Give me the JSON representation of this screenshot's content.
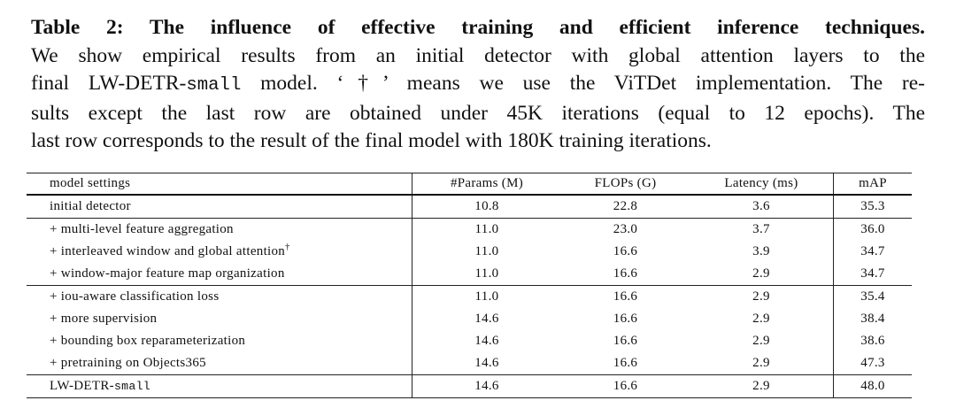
{
  "caption": {
    "title": "Table 2: The influence of effective training and efficient inference techniques.",
    "lines": [
      [
        "We show empirical results from an initial detector with global attention layers to the"
      ],
      [
        "final LW-DETR-",
        "small",
        " model. ‘†’ means we use the ViTDet implementation. The re-"
      ],
      [
        "sults except the last row are obtained under 45K iterations (equal to 12 epochs). The"
      ],
      [
        "last row corresponds to the result of the final model with 180K training iterations."
      ]
    ]
  },
  "table": {
    "header": [
      "model settings",
      "#Params (M)",
      "FLOPs (G)",
      "Latency (ms)",
      "mAP"
    ],
    "groups": [
      [
        {
          "cells": [
            "initial detector",
            "10.8",
            "22.8",
            "3.6",
            "35.3"
          ]
        }
      ],
      [
        {
          "cells": [
            "+ multi-level feature aggregation",
            "11.0",
            "23.0",
            "3.7",
            "36.0"
          ]
        },
        {
          "cells": [
            "+ interleaved window and global attention",
            "11.0",
            "16.6",
            "3.9",
            "34.7"
          ],
          "sup": "†"
        },
        {
          "cells": [
            "+ window-major feature map organization",
            "11.0",
            "16.6",
            "2.9",
            "34.7"
          ]
        }
      ],
      [
        {
          "cells": [
            "+ iou-aware classification loss",
            "11.0",
            "16.6",
            "2.9",
            "35.4"
          ]
        },
        {
          "cells": [
            "+ more supervision",
            "14.6",
            "16.6",
            "2.9",
            "38.4"
          ]
        },
        {
          "cells": [
            "+ bounding box reparameterization",
            "14.6",
            "16.6",
            "2.9",
            "38.6"
          ]
        },
        {
          "cells": [
            "+ pretraining on Objects365",
            "14.6",
            "16.6",
            "2.9",
            "47.3"
          ]
        }
      ],
      [
        {
          "cells": [
            "LW-DETR-",
            "14.6",
            "16.6",
            "2.9",
            "48.0"
          ],
          "mono": "small"
        }
      ]
    ]
  }
}
